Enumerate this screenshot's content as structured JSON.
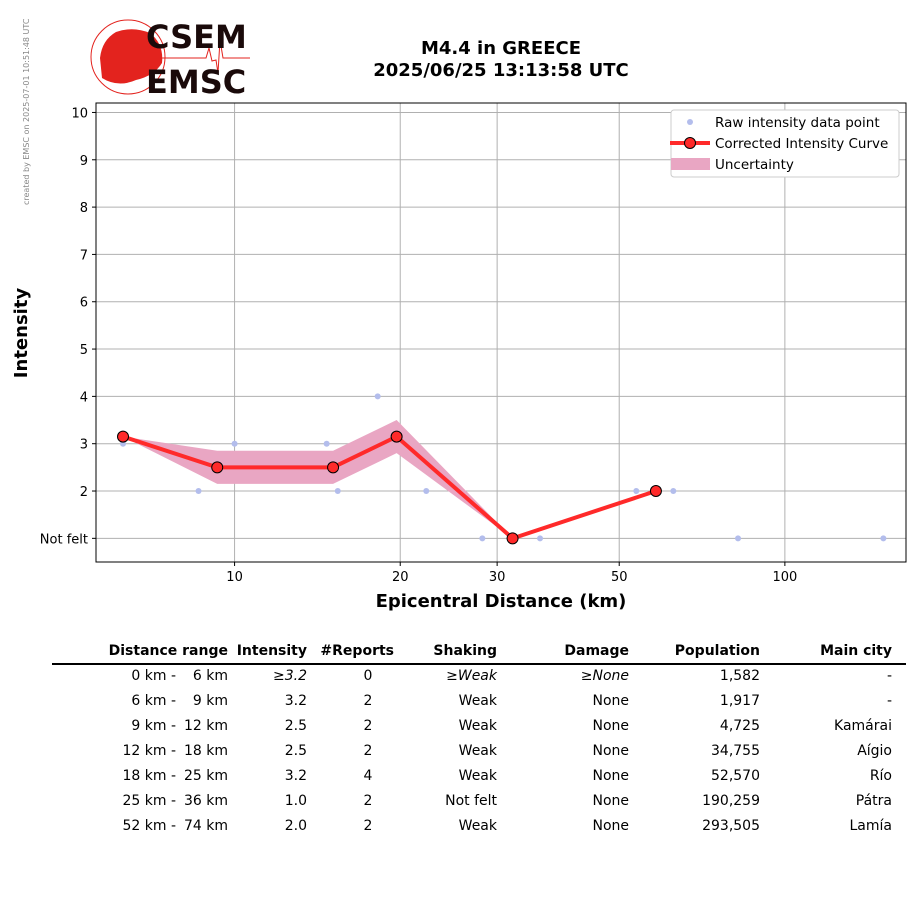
{
  "credit": "created by EMSC on 2025-07-01 10:51:48 UTC",
  "logo": {
    "text_top": "CSEM",
    "text_bottom": "EMSC",
    "color": "#e3231e"
  },
  "title": {
    "line1": "M4.4 in GREECE",
    "line2": "2025/06/25 13:13:58 UTC"
  },
  "chart_data": {
    "type": "line",
    "xlabel": "Epicentral Distance (km)",
    "ylabel": "Intensity",
    "xscale": "log",
    "xlim": [
      5.6,
      166
    ],
    "ylim": [
      0.5,
      10.2
    ],
    "xticks": [
      10,
      20,
      30,
      50,
      100
    ],
    "xtick_labels": [
      "10",
      "20",
      "30",
      "50",
      "100"
    ],
    "yticks": [
      1,
      2,
      3,
      4,
      5,
      6,
      7,
      8,
      9,
      10
    ],
    "ytick_labels": [
      "Not felt",
      "2",
      "3",
      "4",
      "5",
      "6",
      "7",
      "8",
      "9",
      "10"
    ],
    "grid": true,
    "legend_position": "top-right",
    "legend": [
      "Raw intensity data point",
      "Corrected Intensity Curve",
      "Uncertainty"
    ],
    "colors": {
      "raw": "#b3bdec",
      "curve": "#ff2a2a",
      "uncertainty": "#e9a6c3"
    },
    "raw_points": {
      "x": [
        6.27,
        8.6,
        10,
        14.7,
        15.4,
        18.2,
        22.3,
        28.2,
        35.9,
        53.7,
        62.7,
        82.2,
        151
      ],
      "y": [
        3,
        2,
        3,
        3,
        2,
        4,
        2,
        1,
        1,
        2,
        2,
        1,
        1
      ]
    },
    "curve": {
      "x": [
        6.27,
        9.3,
        15.1,
        19.7,
        32.0,
        58.3
      ],
      "y": [
        3.15,
        2.5,
        2.5,
        3.15,
        1.0,
        2.0
      ]
    },
    "uncertainty": {
      "x": [
        6.27,
        9.3,
        15.1,
        19.7,
        32.0
      ],
      "lower": [
        3.15,
        2.15,
        2.15,
        2.8,
        1.0
      ],
      "upper": [
        3.15,
        2.85,
        2.85,
        3.5,
        1.0
      ]
    }
  },
  "table": {
    "headers": [
      "Distance range",
      "Intensity",
      "#Reports",
      "Shaking",
      "Damage",
      "Population",
      "Main city"
    ],
    "rows": [
      {
        "from": "0 km -",
        "to": "6 km",
        "intensity": "≥3.2",
        "reports": "0",
        "shaking": "≥Weak",
        "damage": "≥None",
        "population": "1,582",
        "city": "-",
        "estimated": true
      },
      {
        "from": "6 km -",
        "to": "9 km",
        "intensity": "3.2",
        "reports": "2",
        "shaking": "Weak",
        "damage": "None",
        "population": "1,917",
        "city": "-"
      },
      {
        "from": "9 km -",
        "to": "12 km",
        "intensity": "2.5",
        "reports": "2",
        "shaking": "Weak",
        "damage": "None",
        "population": "4,725",
        "city": "Kamárai"
      },
      {
        "from": "12 km -",
        "to": "18 km",
        "intensity": "2.5",
        "reports": "2",
        "shaking": "Weak",
        "damage": "None",
        "population": "34,755",
        "city": "Aígio"
      },
      {
        "from": "18 km -",
        "to": "25 km",
        "intensity": "3.2",
        "reports": "4",
        "shaking": "Weak",
        "damage": "None",
        "population": "52,570",
        "city": "Río"
      },
      {
        "from": "25 km -",
        "to": "36 km",
        "intensity": "1.0",
        "reports": "2",
        "shaking": "Not felt",
        "damage": "None",
        "population": "190,259",
        "city": "Pátra"
      },
      {
        "from": "52 km -",
        "to": "74 km",
        "intensity": "2.0",
        "reports": "2",
        "shaking": "Weak",
        "damage": "None",
        "population": "293,505",
        "city": "Lamía"
      }
    ]
  }
}
